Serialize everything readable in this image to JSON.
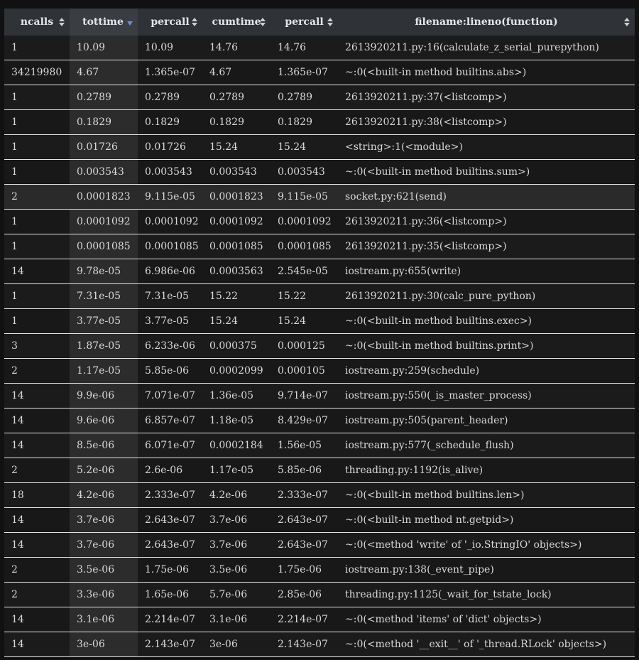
{
  "columns": [
    {
      "key": "ncalls",
      "label": "ncalls",
      "sort": "both"
    },
    {
      "key": "tottime",
      "label": "tottime",
      "sort": "desc"
    },
    {
      "key": "percall1",
      "label": "percall",
      "sort": "both"
    },
    {
      "key": "cumtime",
      "label": "cumtime",
      "sort": "both"
    },
    {
      "key": "percall2",
      "label": "percall",
      "sort": "both"
    },
    {
      "key": "func",
      "label": "filename:lineno(function)",
      "sort": "both"
    }
  ],
  "rows": [
    [
      "1",
      "10.09",
      "10.09",
      "14.76",
      "14.76",
      "2613920211.py:16(calculate_z_serial_purepython)"
    ],
    [
      "34219980",
      "4.67",
      "1.365e-07",
      "4.67",
      "1.365e-07",
      "~:0(<built-in method builtins.abs>)"
    ],
    [
      "1",
      "0.2789",
      "0.2789",
      "0.2789",
      "0.2789",
      "2613920211.py:37(<listcomp>)"
    ],
    [
      "1",
      "0.1829",
      "0.1829",
      "0.1829",
      "0.1829",
      "2613920211.py:38(<listcomp>)"
    ],
    [
      "1",
      "0.01726",
      "0.01726",
      "15.24",
      "15.24",
      "<string>:1(<module>)"
    ],
    [
      "1",
      "0.003543",
      "0.003543",
      "0.003543",
      "0.003543",
      "~:0(<built-in method builtins.sum>)"
    ],
    [
      "2",
      "0.0001823",
      "9.115e-05",
      "0.0001823",
      "9.115e-05",
      "socket.py:621(send)"
    ],
    [
      "1",
      "0.0001092",
      "0.0001092",
      "0.0001092",
      "0.0001092",
      "2613920211.py:36(<listcomp>)"
    ],
    [
      "1",
      "0.0001085",
      "0.0001085",
      "0.0001085",
      "0.0001085",
      "2613920211.py:35(<listcomp>)"
    ],
    [
      "14",
      "9.78e-05",
      "6.986e-06",
      "0.0003563",
      "2.545e-05",
      "iostream.py:655(write)"
    ],
    [
      "1",
      "7.31e-05",
      "7.31e-05",
      "15.22",
      "15.22",
      "2613920211.py:30(calc_pure_python)"
    ],
    [
      "1",
      "3.77e-05",
      "3.77e-05",
      "15.24",
      "15.24",
      "~:0(<built-in method builtins.exec>)"
    ],
    [
      "3",
      "1.87e-05",
      "6.233e-06",
      "0.000375",
      "0.000125",
      "~:0(<built-in method builtins.print>)"
    ],
    [
      "2",
      "1.17e-05",
      "5.85e-06",
      "0.0002099",
      "0.000105",
      "iostream.py:259(schedule)"
    ],
    [
      "14",
      "9.9e-06",
      "7.071e-07",
      "1.36e-05",
      "9.714e-07",
      "iostream.py:550(_is_master_process)"
    ],
    [
      "14",
      "9.6e-06",
      "6.857e-07",
      "1.18e-05",
      "8.429e-07",
      "iostream.py:505(parent_header)"
    ],
    [
      "14",
      "8.5e-06",
      "6.071e-07",
      "0.0002184",
      "1.56e-05",
      "iostream.py:577(_schedule_flush)"
    ],
    [
      "2",
      "5.2e-06",
      "2.6e-06",
      "1.17e-05",
      "5.85e-06",
      "threading.py:1192(is_alive)"
    ],
    [
      "18",
      "4.2e-06",
      "2.333e-07",
      "4.2e-06",
      "2.333e-07",
      "~:0(<built-in method builtins.len>)"
    ],
    [
      "14",
      "3.7e-06",
      "2.643e-07",
      "3.7e-06",
      "2.643e-07",
      "~:0(<built-in method nt.getpid>)"
    ],
    [
      "14",
      "3.7e-06",
      "2.643e-07",
      "3.7e-06",
      "2.643e-07",
      "~:0(<method 'write' of '_io.StringIO' objects>)"
    ],
    [
      "2",
      "3.5e-06",
      "1.75e-06",
      "3.5e-06",
      "1.75e-06",
      "iostream.py:138(_event_pipe)"
    ],
    [
      "2",
      "3.3e-06",
      "1.65e-06",
      "5.7e-06",
      "2.85e-06",
      "threading.py:1125(_wait_for_tstate_lock)"
    ],
    [
      "14",
      "3.1e-06",
      "2.214e-07",
      "3.1e-06",
      "2.214e-07",
      "~:0(<method 'items' of 'dict' objects>)"
    ],
    [
      "14",
      "3e-06",
      "2.143e-07",
      "3e-06",
      "2.143e-07",
      "~:0(<method '__exit__' of '_thread.RLock' objects>)"
    ]
  ],
  "highlighted_rows": [
    6
  ],
  "colors": {
    "header_bg": "#2f3236",
    "sorted_header_bg": "#3a3d42",
    "row_bg": "#1b1b1b",
    "row_divider": "#e5e5e5",
    "sort_icon": "#cfcfcf",
    "sort_active": "#6b8fd6"
  }
}
